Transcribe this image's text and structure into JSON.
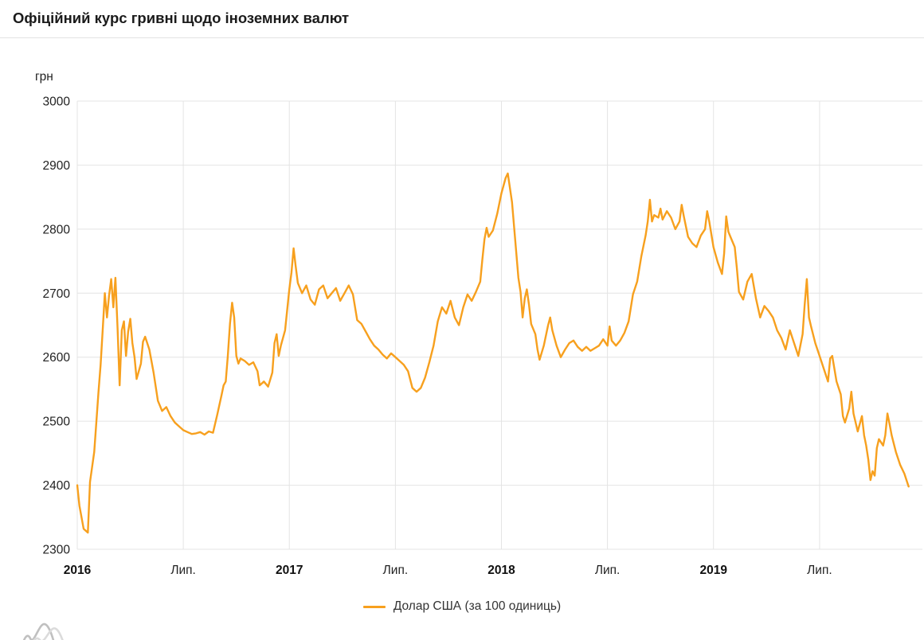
{
  "header": {
    "title": "Офіційний курс гривні щодо іноземних валют"
  },
  "legend": {
    "label": "Долар США (за 100 одиниць)"
  },
  "chart_data": {
    "type": "line",
    "title": "Офіційний курс гривні щодо іноземних валют",
    "ylabel": "грн",
    "xlabel": "",
    "ylim": [
      2300,
      3000
    ],
    "xlim": [
      2016.0,
      2019.985
    ],
    "y_ticks": [
      3000,
      2900,
      2800,
      2700,
      2600,
      2500,
      2400,
      2300
    ],
    "x_ticks": [
      {
        "pos": 2016.0,
        "label": "2016",
        "bold": true
      },
      {
        "pos": 2016.5,
        "label": "Лип.",
        "bold": false
      },
      {
        "pos": 2017.0,
        "label": "2017",
        "bold": true
      },
      {
        "pos": 2017.5,
        "label": "Лип.",
        "bold": false
      },
      {
        "pos": 2018.0,
        "label": "2018",
        "bold": true
      },
      {
        "pos": 2018.5,
        "label": "Лип.",
        "bold": false
      },
      {
        "pos": 2019.0,
        "label": "2019",
        "bold": true
      },
      {
        "pos": 2019.5,
        "label": "Лип.",
        "bold": false
      }
    ],
    "grid": true,
    "grid_color": "#e4e4e4",
    "legend_position": "bottom",
    "series": [
      {
        "name": "Долар США (за 100 одиниць)",
        "color": "#f7a01e",
        "points": [
          [
            2016.0,
            2400
          ],
          [
            2016.01,
            2368
          ],
          [
            2016.03,
            2332
          ],
          [
            2016.05,
            2326
          ],
          [
            2016.06,
            2405
          ],
          [
            2016.08,
            2452
          ],
          [
            2016.1,
            2545
          ],
          [
            2016.11,
            2588
          ],
          [
            2016.12,
            2642
          ],
          [
            2016.13,
            2700
          ],
          [
            2016.14,
            2662
          ],
          [
            2016.15,
            2696
          ],
          [
            2016.16,
            2722
          ],
          [
            2016.17,
            2678
          ],
          [
            2016.18,
            2724
          ],
          [
            2016.19,
            2645
          ],
          [
            2016.2,
            2556
          ],
          [
            2016.21,
            2642
          ],
          [
            2016.22,
            2656
          ],
          [
            2016.23,
            2602
          ],
          [
            2016.24,
            2640
          ],
          [
            2016.25,
            2660
          ],
          [
            2016.26,
            2622
          ],
          [
            2016.27,
            2600
          ],
          [
            2016.28,
            2566
          ],
          [
            2016.3,
            2590
          ],
          [
            2016.31,
            2624
          ],
          [
            2016.32,
            2632
          ],
          [
            2016.34,
            2612
          ],
          [
            2016.36,
            2576
          ],
          [
            2016.38,
            2532
          ],
          [
            2016.4,
            2516
          ],
          [
            2016.42,
            2522
          ],
          [
            2016.44,
            2508
          ],
          [
            2016.46,
            2498
          ],
          [
            2016.48,
            2492
          ],
          [
            2016.5,
            2486
          ],
          [
            2016.52,
            2483
          ],
          [
            2016.54,
            2480
          ],
          [
            2016.56,
            2481
          ],
          [
            2016.58,
            2483
          ],
          [
            2016.6,
            2479
          ],
          [
            2016.62,
            2484
          ],
          [
            2016.64,
            2482
          ],
          [
            2016.66,
            2510
          ],
          [
            2016.68,
            2540
          ],
          [
            2016.69,
            2556
          ],
          [
            2016.7,
            2562
          ],
          [
            2016.71,
            2602
          ],
          [
            2016.72,
            2652
          ],
          [
            2016.73,
            2685
          ],
          [
            2016.74,
            2662
          ],
          [
            2016.75,
            2602
          ],
          [
            2016.76,
            2590
          ],
          [
            2016.77,
            2598
          ],
          [
            2016.79,
            2594
          ],
          [
            2016.81,
            2588
          ],
          [
            2016.83,
            2592
          ],
          [
            2016.85,
            2578
          ],
          [
            2016.86,
            2556
          ],
          [
            2016.88,
            2562
          ],
          [
            2016.9,
            2554
          ],
          [
            2016.92,
            2576
          ],
          [
            2016.93,
            2622
          ],
          [
            2016.94,
            2636
          ],
          [
            2016.95,
            2602
          ],
          [
            2016.96,
            2618
          ],
          [
            2016.98,
            2642
          ],
          [
            2017.0,
            2706
          ],
          [
            2017.01,
            2732
          ],
          [
            2017.02,
            2770
          ],
          [
            2017.03,
            2742
          ],
          [
            2017.04,
            2716
          ],
          [
            2017.06,
            2700
          ],
          [
            2017.08,
            2712
          ],
          [
            2017.1,
            2690
          ],
          [
            2017.12,
            2682
          ],
          [
            2017.14,
            2706
          ],
          [
            2017.16,
            2712
          ],
          [
            2017.18,
            2692
          ],
          [
            2017.2,
            2700
          ],
          [
            2017.22,
            2708
          ],
          [
            2017.24,
            2688
          ],
          [
            2017.26,
            2700
          ],
          [
            2017.28,
            2712
          ],
          [
            2017.3,
            2698
          ],
          [
            2017.32,
            2658
          ],
          [
            2017.34,
            2652
          ],
          [
            2017.36,
            2640
          ],
          [
            2017.38,
            2628
          ],
          [
            2017.4,
            2618
          ],
          [
            2017.42,
            2612
          ],
          [
            2017.44,
            2604
          ],
          [
            2017.46,
            2598
          ],
          [
            2017.48,
            2606
          ],
          [
            2017.5,
            2600
          ],
          [
            2017.52,
            2594
          ],
          [
            2017.54,
            2588
          ],
          [
            2017.56,
            2578
          ],
          [
            2017.58,
            2552
          ],
          [
            2017.6,
            2546
          ],
          [
            2017.62,
            2552
          ],
          [
            2017.64,
            2568
          ],
          [
            2017.66,
            2592
          ],
          [
            2017.68,
            2618
          ],
          [
            2017.7,
            2656
          ],
          [
            2017.72,
            2678
          ],
          [
            2017.74,
            2668
          ],
          [
            2017.76,
            2688
          ],
          [
            2017.78,
            2662
          ],
          [
            2017.8,
            2650
          ],
          [
            2017.82,
            2678
          ],
          [
            2017.84,
            2698
          ],
          [
            2017.86,
            2688
          ],
          [
            2017.88,
            2702
          ],
          [
            2017.9,
            2718
          ],
          [
            2017.91,
            2752
          ],
          [
            2017.92,
            2784
          ],
          [
            2017.93,
            2802
          ],
          [
            2017.94,
            2788
          ],
          [
            2017.96,
            2798
          ],
          [
            2017.98,
            2824
          ],
          [
            2018.0,
            2856
          ],
          [
            2018.02,
            2880
          ],
          [
            2018.03,
            2887
          ],
          [
            2018.05,
            2842
          ],
          [
            2018.06,
            2802
          ],
          [
            2018.08,
            2724
          ],
          [
            2018.09,
            2702
          ],
          [
            2018.1,
            2662
          ],
          [
            2018.11,
            2692
          ],
          [
            2018.12,
            2706
          ],
          [
            2018.13,
            2682
          ],
          [
            2018.14,
            2652
          ],
          [
            2018.16,
            2636
          ],
          [
            2018.17,
            2612
          ],
          [
            2018.18,
            2596
          ],
          [
            2018.2,
            2618
          ],
          [
            2018.22,
            2650
          ],
          [
            2018.23,
            2662
          ],
          [
            2018.24,
            2642
          ],
          [
            2018.26,
            2618
          ],
          [
            2018.28,
            2600
          ],
          [
            2018.3,
            2612
          ],
          [
            2018.32,
            2622
          ],
          [
            2018.34,
            2626
          ],
          [
            2018.36,
            2616
          ],
          [
            2018.38,
            2610
          ],
          [
            2018.4,
            2616
          ],
          [
            2018.42,
            2610
          ],
          [
            2018.44,
            2614
          ],
          [
            2018.46,
            2618
          ],
          [
            2018.48,
            2628
          ],
          [
            2018.5,
            2618
          ],
          [
            2018.51,
            2648
          ],
          [
            2018.52,
            2626
          ],
          [
            2018.54,
            2618
          ],
          [
            2018.56,
            2626
          ],
          [
            2018.58,
            2638
          ],
          [
            2018.6,
            2656
          ],
          [
            2018.62,
            2698
          ],
          [
            2018.64,
            2718
          ],
          [
            2018.66,
            2758
          ],
          [
            2018.68,
            2790
          ],
          [
            2018.69,
            2812
          ],
          [
            2018.7,
            2846
          ],
          [
            2018.71,
            2812
          ],
          [
            2018.72,
            2822
          ],
          [
            2018.74,
            2818
          ],
          [
            2018.75,
            2832
          ],
          [
            2018.76,
            2815
          ],
          [
            2018.78,
            2828
          ],
          [
            2018.8,
            2818
          ],
          [
            2018.82,
            2800
          ],
          [
            2018.84,
            2812
          ],
          [
            2018.85,
            2838
          ],
          [
            2018.86,
            2820
          ],
          [
            2018.88,
            2788
          ],
          [
            2018.9,
            2778
          ],
          [
            2018.92,
            2772
          ],
          [
            2018.94,
            2790
          ],
          [
            2018.96,
            2800
          ],
          [
            2018.97,
            2828
          ],
          [
            2018.98,
            2812
          ],
          [
            2019.0,
            2772
          ],
          [
            2019.02,
            2748
          ],
          [
            2019.04,
            2730
          ],
          [
            2019.05,
            2762
          ],
          [
            2019.06,
            2820
          ],
          [
            2019.07,
            2796
          ],
          [
            2019.08,
            2788
          ],
          [
            2019.1,
            2772
          ],
          [
            2019.11,
            2740
          ],
          [
            2019.12,
            2702
          ],
          [
            2019.14,
            2690
          ],
          [
            2019.16,
            2718
          ],
          [
            2019.18,
            2730
          ],
          [
            2019.2,
            2692
          ],
          [
            2019.22,
            2662
          ],
          [
            2019.24,
            2680
          ],
          [
            2019.26,
            2672
          ],
          [
            2019.28,
            2662
          ],
          [
            2019.3,
            2642
          ],
          [
            2019.32,
            2630
          ],
          [
            2019.34,
            2612
          ],
          [
            2019.36,
            2642
          ],
          [
            2019.38,
            2622
          ],
          [
            2019.4,
            2602
          ],
          [
            2019.42,
            2636
          ],
          [
            2019.43,
            2682
          ],
          [
            2019.44,
            2722
          ],
          [
            2019.45,
            2662
          ],
          [
            2019.46,
            2648
          ],
          [
            2019.48,
            2622
          ],
          [
            2019.5,
            2602
          ],
          [
            2019.52,
            2582
          ],
          [
            2019.54,
            2562
          ],
          [
            2019.55,
            2598
          ],
          [
            2019.56,
            2602
          ],
          [
            2019.58,
            2562
          ],
          [
            2019.6,
            2542
          ],
          [
            2019.61,
            2508
          ],
          [
            2019.62,
            2498
          ],
          [
            2019.64,
            2520
          ],
          [
            2019.65,
            2546
          ],
          [
            2019.66,
            2512
          ],
          [
            2019.68,
            2484
          ],
          [
            2019.7,
            2508
          ],
          [
            2019.71,
            2478
          ],
          [
            2019.72,
            2462
          ],
          [
            2019.73,
            2440
          ],
          [
            2019.74,
            2408
          ],
          [
            2019.75,
            2422
          ],
          [
            2019.76,
            2415
          ],
          [
            2019.77,
            2458
          ],
          [
            2019.78,
            2472
          ],
          [
            2019.8,
            2462
          ],
          [
            2019.81,
            2478
          ],
          [
            2019.82,
            2512
          ],
          [
            2019.83,
            2496
          ],
          [
            2019.84,
            2478
          ],
          [
            2019.86,
            2452
          ],
          [
            2019.88,
            2432
          ],
          [
            2019.9,
            2418
          ],
          [
            2019.91,
            2408
          ],
          [
            2019.92,
            2398
          ]
        ]
      }
    ]
  }
}
